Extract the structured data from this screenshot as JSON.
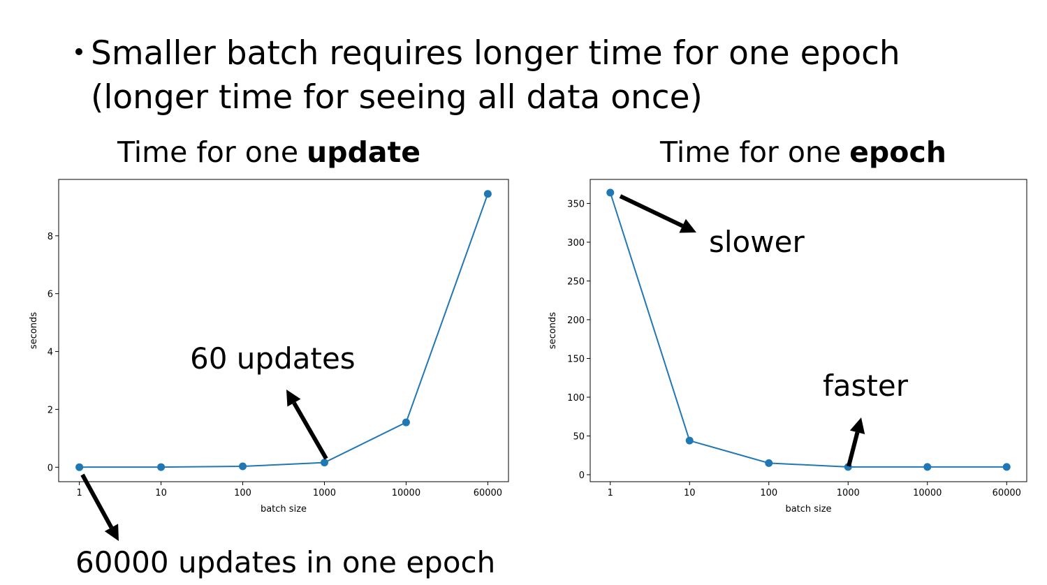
{
  "bullet_lines": [
    "Smaller batch requires longer time for one epoch",
    "(longer time for seeing all data once)"
  ],
  "chart_data": [
    {
      "type": "line",
      "title": "Time for one",
      "title_bold": "update",
      "x_label": "batch size",
      "y_label": "seconds",
      "categories": [
        "1",
        "10",
        "100",
        "1000",
        "10000",
        "60000"
      ],
      "values": [
        0.002,
        0.005,
        0.03,
        0.16,
        1.55,
        9.45
      ],
      "color": "#1f77b4",
      "ylim": [
        -0.5,
        9.95
      ],
      "yticks": [
        0,
        2,
        4,
        6,
        8
      ],
      "annotations": [
        "60 updates",
        "60000 updates in one epoch"
      ]
    },
    {
      "type": "line",
      "title": "Time for one",
      "title_bold": "epoch",
      "x_label": "batch size",
      "y_label": "seconds",
      "categories": [
        "1",
        "10",
        "100",
        "1000",
        "10000",
        "60000"
      ],
      "values": [
        364,
        44,
        15,
        10,
        10,
        10
      ],
      "color": "#1f77b4",
      "ylim": [
        -9,
        381
      ],
      "yticks": [
        0,
        50,
        100,
        150,
        200,
        250,
        300,
        350
      ],
      "annotations": [
        "slower",
        "faster"
      ]
    }
  ]
}
